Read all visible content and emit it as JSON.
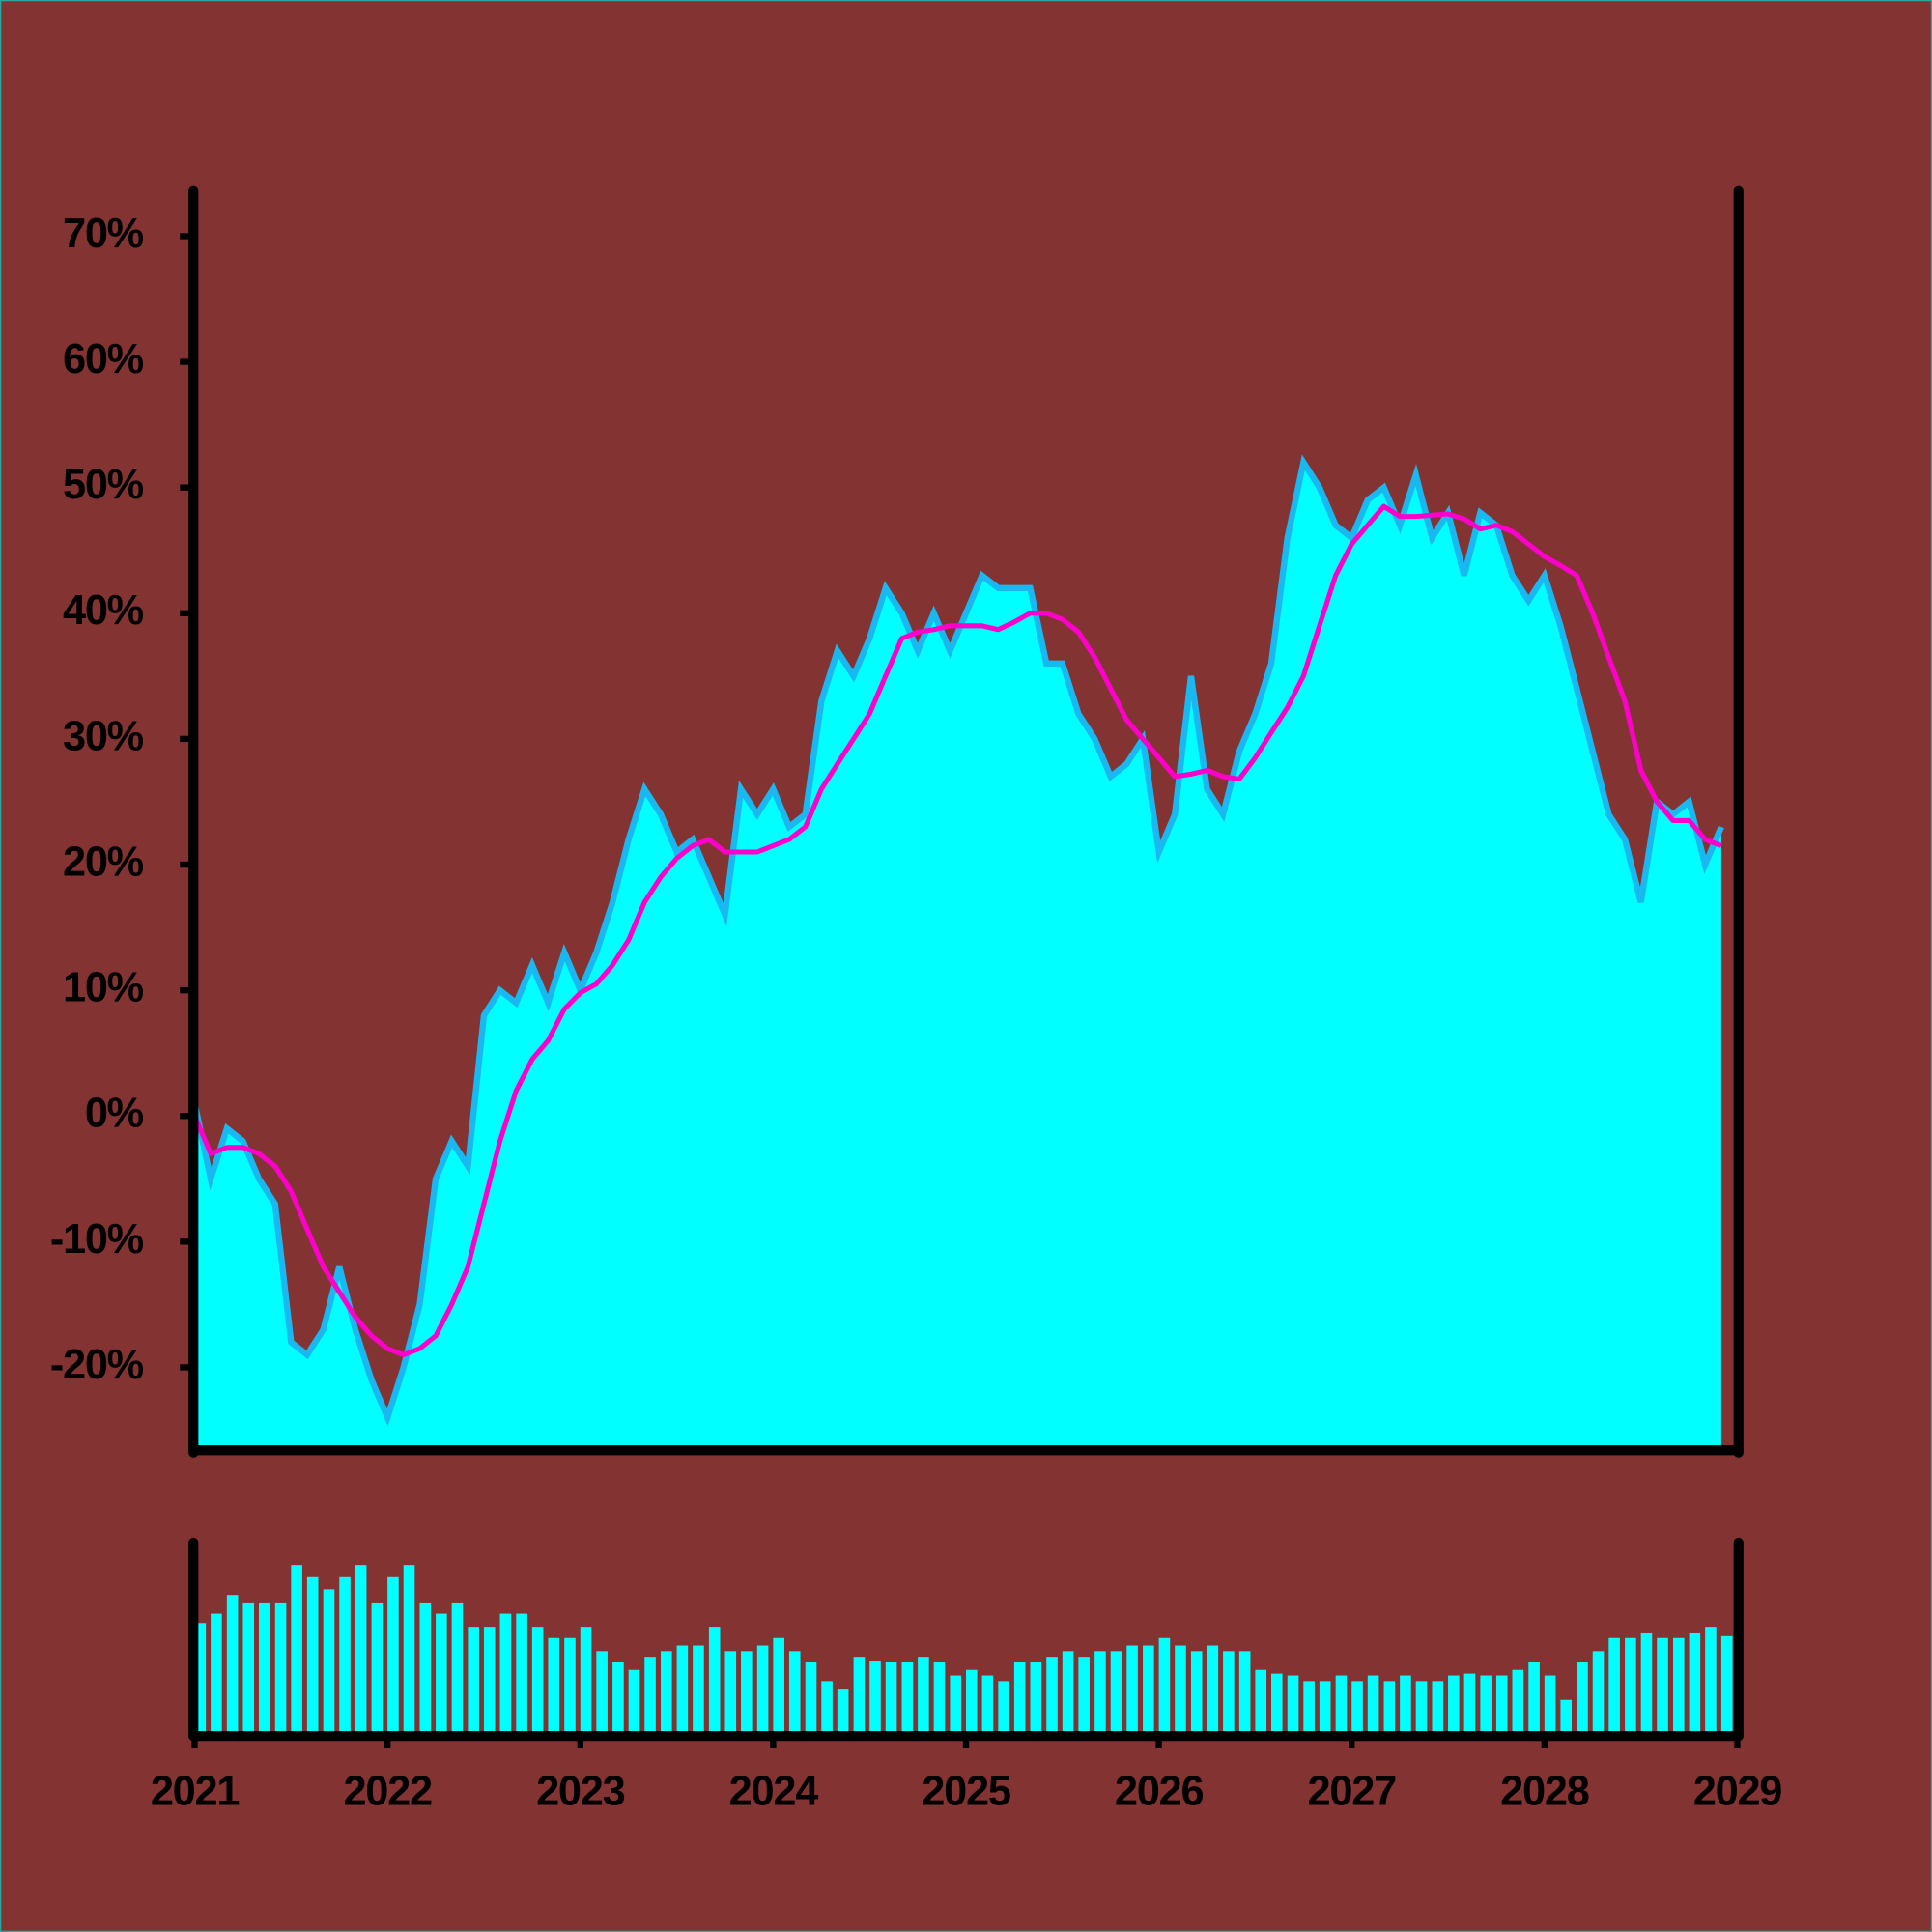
{
  "chart_data": [
    {
      "type": "area",
      "x": [
        2021,
        2021.083,
        2021.167,
        2021.25,
        2021.333,
        2021.417,
        2021.5,
        2021.583,
        2021.667,
        2021.75,
        2021.833,
        2021.917,
        2022,
        2022.083,
        2022.167,
        2022.25,
        2022.333,
        2022.417,
        2022.5,
        2022.583,
        2022.667,
        2022.75,
        2022.833,
        2022.917,
        2023,
        2023.083,
        2023.167,
        2023.25,
        2023.333,
        2023.417,
        2023.5,
        2023.583,
        2023.667,
        2023.75,
        2023.833,
        2023.917,
        2024,
        2024.083,
        2024.167,
        2024.25,
        2024.333,
        2024.417,
        2024.5,
        2024.583,
        2024.667,
        2024.75,
        2024.833,
        2024.917,
        2025,
        2025.083,
        2025.167,
        2025.25,
        2025.333,
        2025.417,
        2025.5,
        2025.583,
        2025.667,
        2025.75,
        2025.833,
        2025.917,
        2026,
        2026.083,
        2026.167,
        2026.25,
        2026.333,
        2026.417,
        2026.5,
        2026.583,
        2026.667,
        2026.75,
        2026.833,
        2026.917,
        2027,
        2027.083,
        2027.167,
        2027.25,
        2027.333,
        2027.417,
        2027.5,
        2027.583,
        2027.667,
        2027.75,
        2027.833,
        2027.917,
        2028,
        2028.083,
        2028.167,
        2028.25,
        2028.333,
        2028.417,
        2028.5,
        2028.583,
        2028.667,
        2028.75,
        2028.833,
        2028.917
      ],
      "xlim": [
        2021,
        2029
      ],
      "ylim": [
        -26.4,
        73.3
      ],
      "yticks": [
        {
          "value": -20,
          "label": "-20%"
        },
        {
          "value": -10,
          "label": "-10%"
        },
        {
          "value": 0,
          "label": "0%"
        },
        {
          "value": 10,
          "label": "10%"
        },
        {
          "value": 20,
          "label": "20%"
        },
        {
          "value": 30,
          "label": "30%"
        },
        {
          "value": 40,
          "label": "40%"
        },
        {
          "value": 50,
          "label": "50%"
        },
        {
          "value": 60,
          "label": "60%"
        },
        {
          "value": 70,
          "label": "70%"
        }
      ],
      "series": [
        {
          "type": "area",
          "color": "#00ffff",
          "stroke": "#1ab8f0",
          "values": [
            1,
            -5,
            -1,
            -2,
            -5,
            -7,
            -18,
            -19,
            -17,
            -12,
            -17,
            -21,
            -24,
            -20,
            -15,
            -5,
            -2,
            -4,
            8,
            10,
            9,
            12,
            9,
            13,
            10,
            13,
            17,
            22,
            26,
            24,
            21,
            22,
            19,
            16,
            26,
            24,
            26,
            23,
            24,
            33,
            37,
            35,
            38,
            42,
            40,
            37,
            40,
            37,
            40,
            43,
            42,
            42,
            42,
            36,
            36,
            32,
            30,
            27,
            28,
            30,
            21,
            24,
            35,
            26,
            24,
            29,
            32,
            36,
            46,
            52,
            50,
            47,
            46,
            49,
            50,
            47,
            51,
            46,
            48,
            43,
            48,
            47,
            43,
            41,
            43,
            39,
            34,
            29,
            24,
            22,
            17,
            25,
            24,
            25,
            20,
            23
          ]
        },
        {
          "type": "line",
          "color": "#ff00cc",
          "values": [
            0,
            -3,
            -2.5,
            -2.5,
            -3,
            -4,
            -6,
            -9,
            -12,
            -14,
            -16,
            -17.5,
            -18.5,
            -19,
            -18.5,
            -17.5,
            -15,
            -12,
            -7,
            -2,
            2,
            4.5,
            6,
            8.5,
            9.8,
            10.5,
            12,
            14,
            17,
            19,
            20.5,
            21.5,
            22,
            21,
            21,
            21,
            21.5,
            22,
            23,
            26,
            28,
            30,
            32,
            35,
            38,
            38.5,
            38.7,
            39,
            39,
            39,
            38.7,
            39.3,
            40,
            40,
            39.5,
            38.5,
            36.5,
            34,
            31.5,
            30,
            28.5,
            27,
            27.2,
            27.5,
            27,
            26.8,
            28.5,
            30.5,
            32.5,
            35,
            39,
            43,
            45.5,
            47,
            48.5,
            47.7,
            47.7,
            47.8,
            47.9,
            47.5,
            46.7,
            47,
            46.5,
            45.5,
            44.5,
            43.8,
            43,
            40,
            36.5,
            33,
            27.5,
            25,
            23.5,
            23.5,
            22,
            21.5
          ]
        }
      ]
    },
    {
      "type": "bar",
      "color": "#00ffff",
      "x": [
        2021,
        2021.083,
        2021.167,
        2021.25,
        2021.333,
        2021.417,
        2021.5,
        2021.583,
        2021.667,
        2021.75,
        2021.833,
        2021.917,
        2022,
        2022.083,
        2022.167,
        2022.25,
        2022.333,
        2022.417,
        2022.5,
        2022.583,
        2022.667,
        2022.75,
        2022.833,
        2022.917,
        2023,
        2023.083,
        2023.167,
        2023.25,
        2023.333,
        2023.417,
        2023.5,
        2023.583,
        2023.667,
        2023.75,
        2023.833,
        2023.917,
        2024,
        2024.083,
        2024.167,
        2024.25,
        2024.333,
        2024.417,
        2024.5,
        2024.583,
        2024.667,
        2024.75,
        2024.833,
        2024.917,
        2025,
        2025.083,
        2025.167,
        2025.25,
        2025.333,
        2025.417,
        2025.5,
        2025.583,
        2025.667,
        2025.75,
        2025.833,
        2025.917,
        2026,
        2026.083,
        2026.167,
        2026.25,
        2026.333,
        2026.417,
        2026.5,
        2026.583,
        2026.667,
        2026.75,
        2026.833,
        2026.917,
        2027,
        2027.083,
        2027.167,
        2027.25,
        2027.333,
        2027.417,
        2027.5,
        2027.583,
        2027.667,
        2027.75,
        2027.833,
        2027.917,
        2028,
        2028.083,
        2028.167,
        2028.25,
        2028.333,
        2028.417,
        2028.5,
        2028.583,
        2028.667,
        2028.75,
        2028.833,
        2028.917
      ],
      "values": [
        59,
        64,
        74,
        70,
        70,
        70,
        90,
        84,
        77,
        84,
        90,
        70,
        84,
        90,
        70,
        64,
        70,
        57,
        57,
        64,
        64,
        57,
        51,
        51,
        57,
        44,
        38,
        34,
        41,
        44,
        47,
        47,
        57,
        44,
        44,
        47,
        51,
        44,
        38,
        28,
        24,
        41,
        39,
        38,
        38,
        41,
        38,
        31,
        34,
        31,
        28,
        38,
        38,
        41,
        44,
        41,
        44,
        44,
        47,
        47,
        51,
        47,
        44,
        47,
        44,
        44,
        34,
        32,
        31,
        28,
        28,
        31,
        28,
        31,
        28,
        31,
        28,
        28,
        31,
        32,
        31,
        31,
        34,
        38,
        31,
        18,
        38,
        44,
        51,
        51,
        54,
        51,
        51,
        54,
        57,
        52
      ],
      "xlim": [
        2021,
        2029
      ],
      "ylim": [
        0,
        100
      ],
      "xticks": [
        2021,
        2022,
        2023,
        2024,
        2025,
        2026,
        2027,
        2028,
        2029
      ]
    }
  ]
}
